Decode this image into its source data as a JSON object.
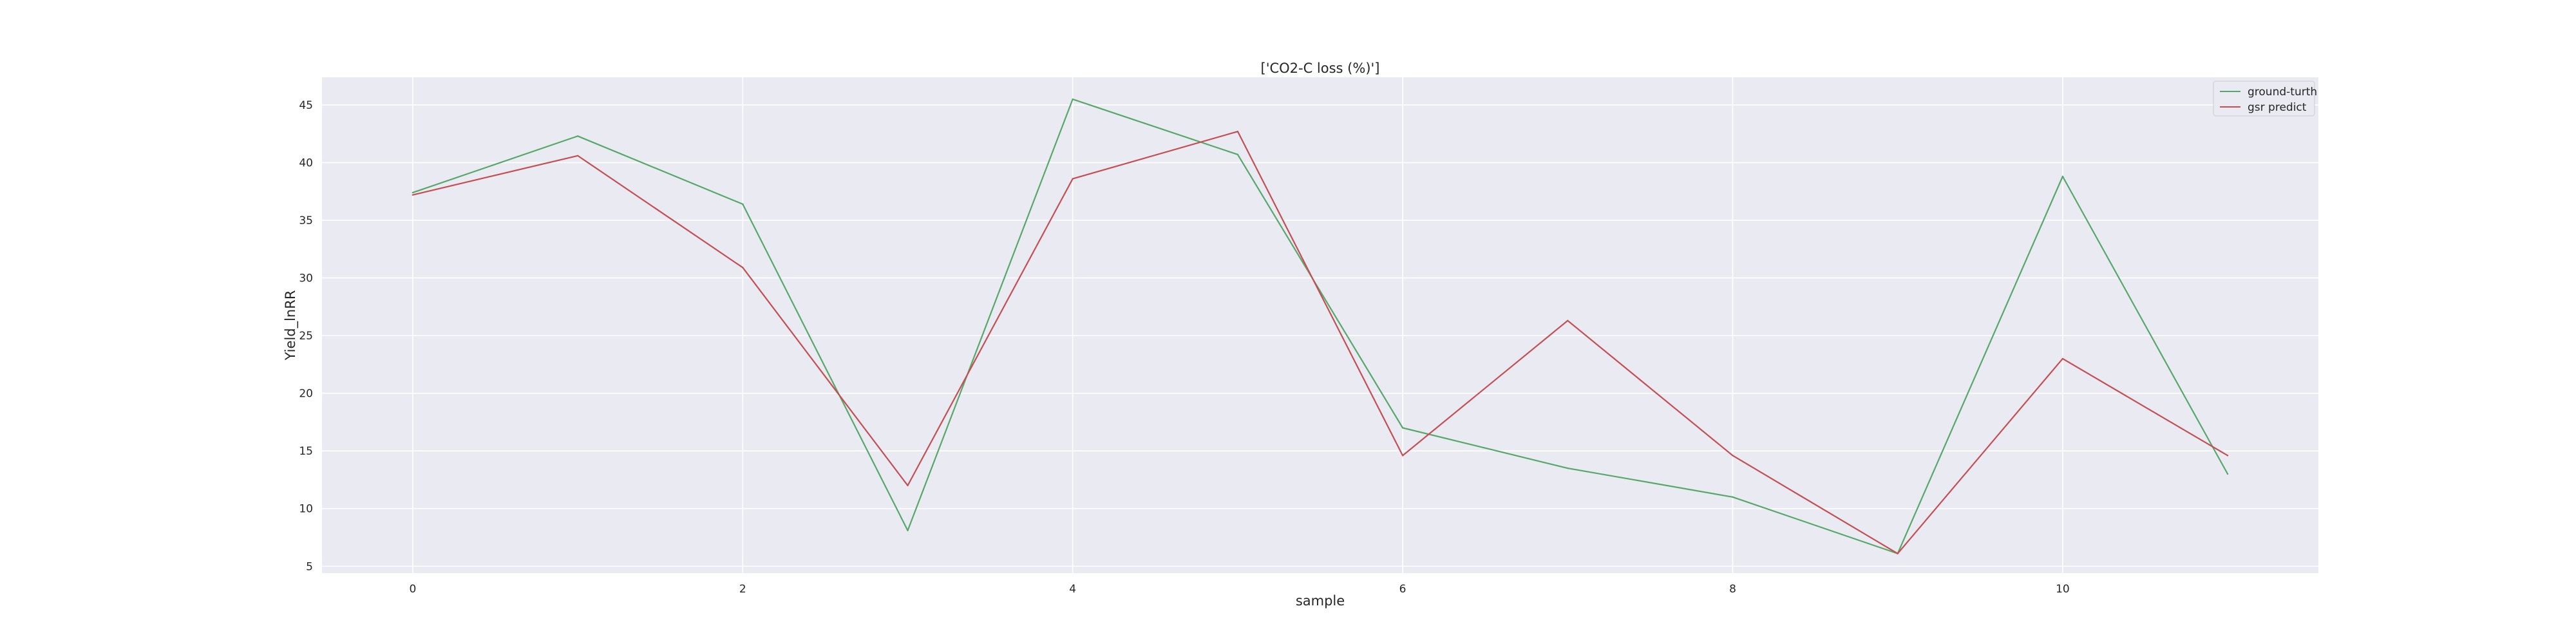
{
  "chart_data": {
    "type": "line",
    "title": "['CO2-C loss (%)']",
    "xlabel": "sample",
    "ylabel": "Yield_lnRR",
    "x": [
      0,
      1,
      2,
      3,
      4,
      5,
      6,
      7,
      8,
      9,
      10,
      11
    ],
    "xticks": [
      0,
      2,
      4,
      6,
      8,
      10
    ],
    "yticks": [
      5,
      10,
      15,
      20,
      25,
      30,
      35,
      40,
      45
    ],
    "xlim": [
      -0.55,
      11.55
    ],
    "ylim": [
      4.4,
      47.4
    ],
    "grid": true,
    "legend_position": "top-right",
    "series": [
      {
        "name": "ground-turth",
        "color": "#55a868",
        "values": [
          37.4,
          42.3,
          36.4,
          8.1,
          45.5,
          40.7,
          17.0,
          13.5,
          11.0,
          6.1,
          38.8,
          13.0
        ]
      },
      {
        "name": "gsr predict",
        "color": "#c44e52",
        "values": [
          37.2,
          40.6,
          30.9,
          12.0,
          38.6,
          42.7,
          14.6,
          26.3,
          14.6,
          6.1,
          23.0,
          14.6
        ]
      }
    ]
  }
}
